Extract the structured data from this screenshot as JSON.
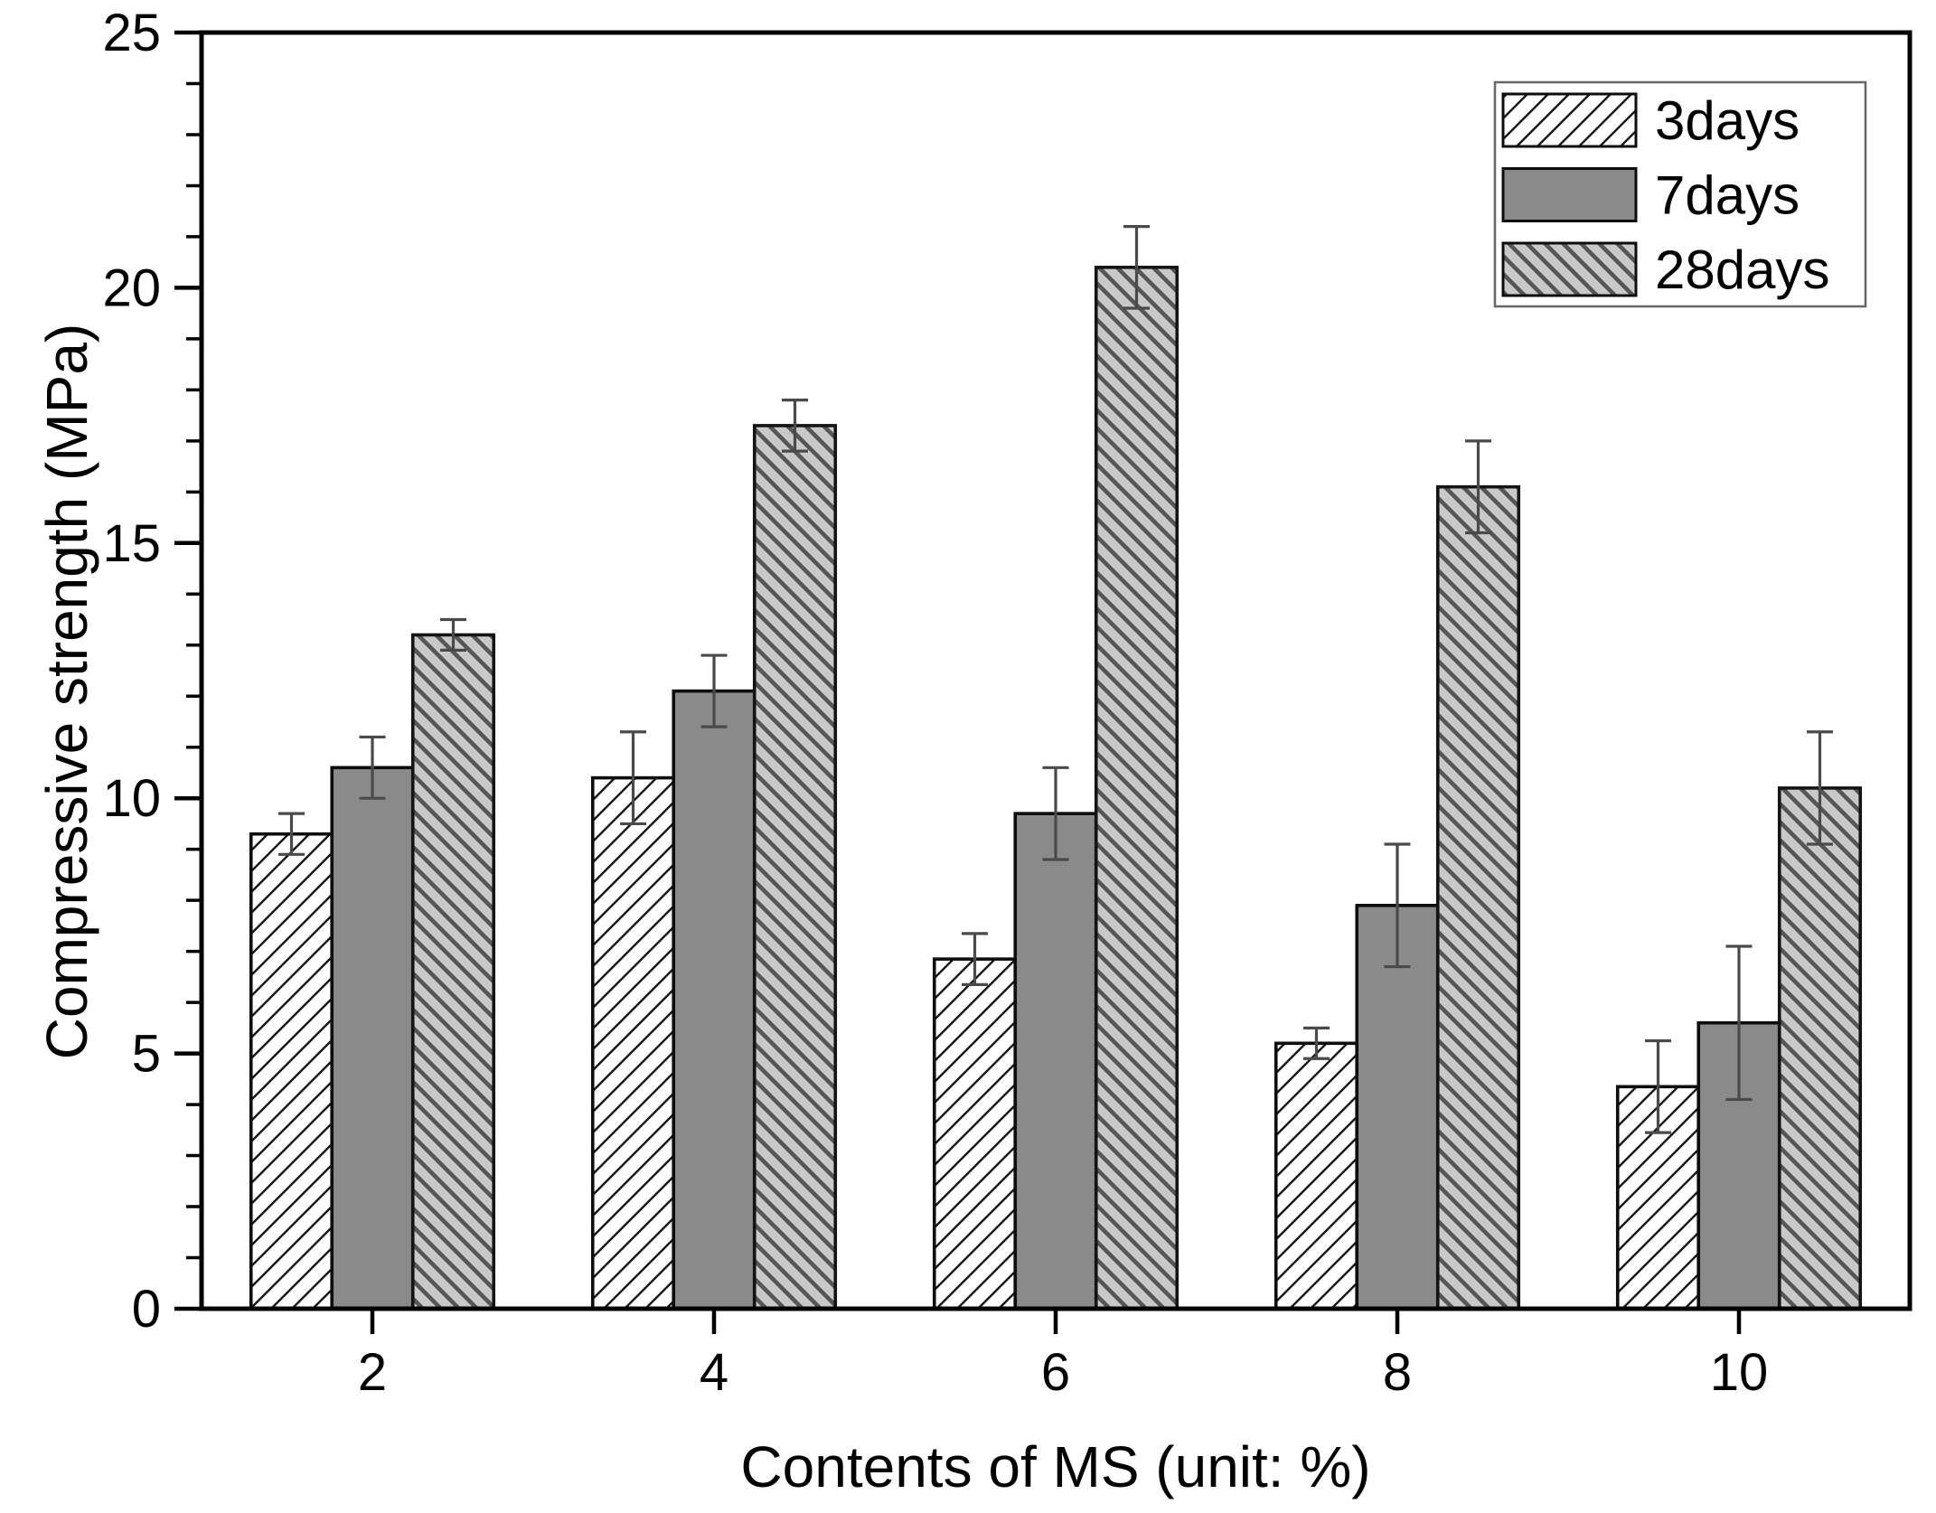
{
  "figure": {
    "background": "#ffffff",
    "frame_color": "#000000"
  },
  "chart_data": {
    "type": "bar",
    "title": "",
    "xlabel": "Contents of MS (unit: %)",
    "ylabel": "Compressive strength (MPa)",
    "categories": [
      "2",
      "4",
      "6",
      "8",
      "10"
    ],
    "series": [
      {
        "name": "3days",
        "values": [
          9.3,
          10.4,
          6.85,
          5.2,
          4.35
        ],
        "errors": [
          0.4,
          0.9,
          0.5,
          0.3,
          0.9
        ],
        "style": "hatch-forward",
        "fill_color": "#ffffff",
        "hatch_color": "#161616",
        "edge_color": "#0d0d0d"
      },
      {
        "name": "7days",
        "values": [
          10.6,
          12.1,
          9.7,
          7.9,
          5.6
        ],
        "errors": [
          0.6,
          0.7,
          0.9,
          1.2,
          1.5
        ],
        "style": "solid",
        "fill_color": "#8a8a8a",
        "hatch_color": "#8a8a8a",
        "edge_color": "#0d0d0d"
      },
      {
        "name": "28days",
        "values": [
          13.2,
          17.3,
          20.4,
          16.1,
          10.2
        ],
        "errors": [
          0.3,
          0.5,
          0.8,
          0.9,
          1.1
        ],
        "style": "hatch-back",
        "fill_color": "#c9c9c9",
        "hatch_color": "#565656",
        "edge_color": "#141414"
      }
    ],
    "ylim": [
      0,
      25
    ],
    "y_ticks": [
      0,
      5,
      10,
      15,
      20,
      25
    ],
    "y_minor_step": 1,
    "grid": false,
    "legend_position": "top-right",
    "error_bar_color": "#4a4a4a",
    "axis_color": "#000000"
  }
}
